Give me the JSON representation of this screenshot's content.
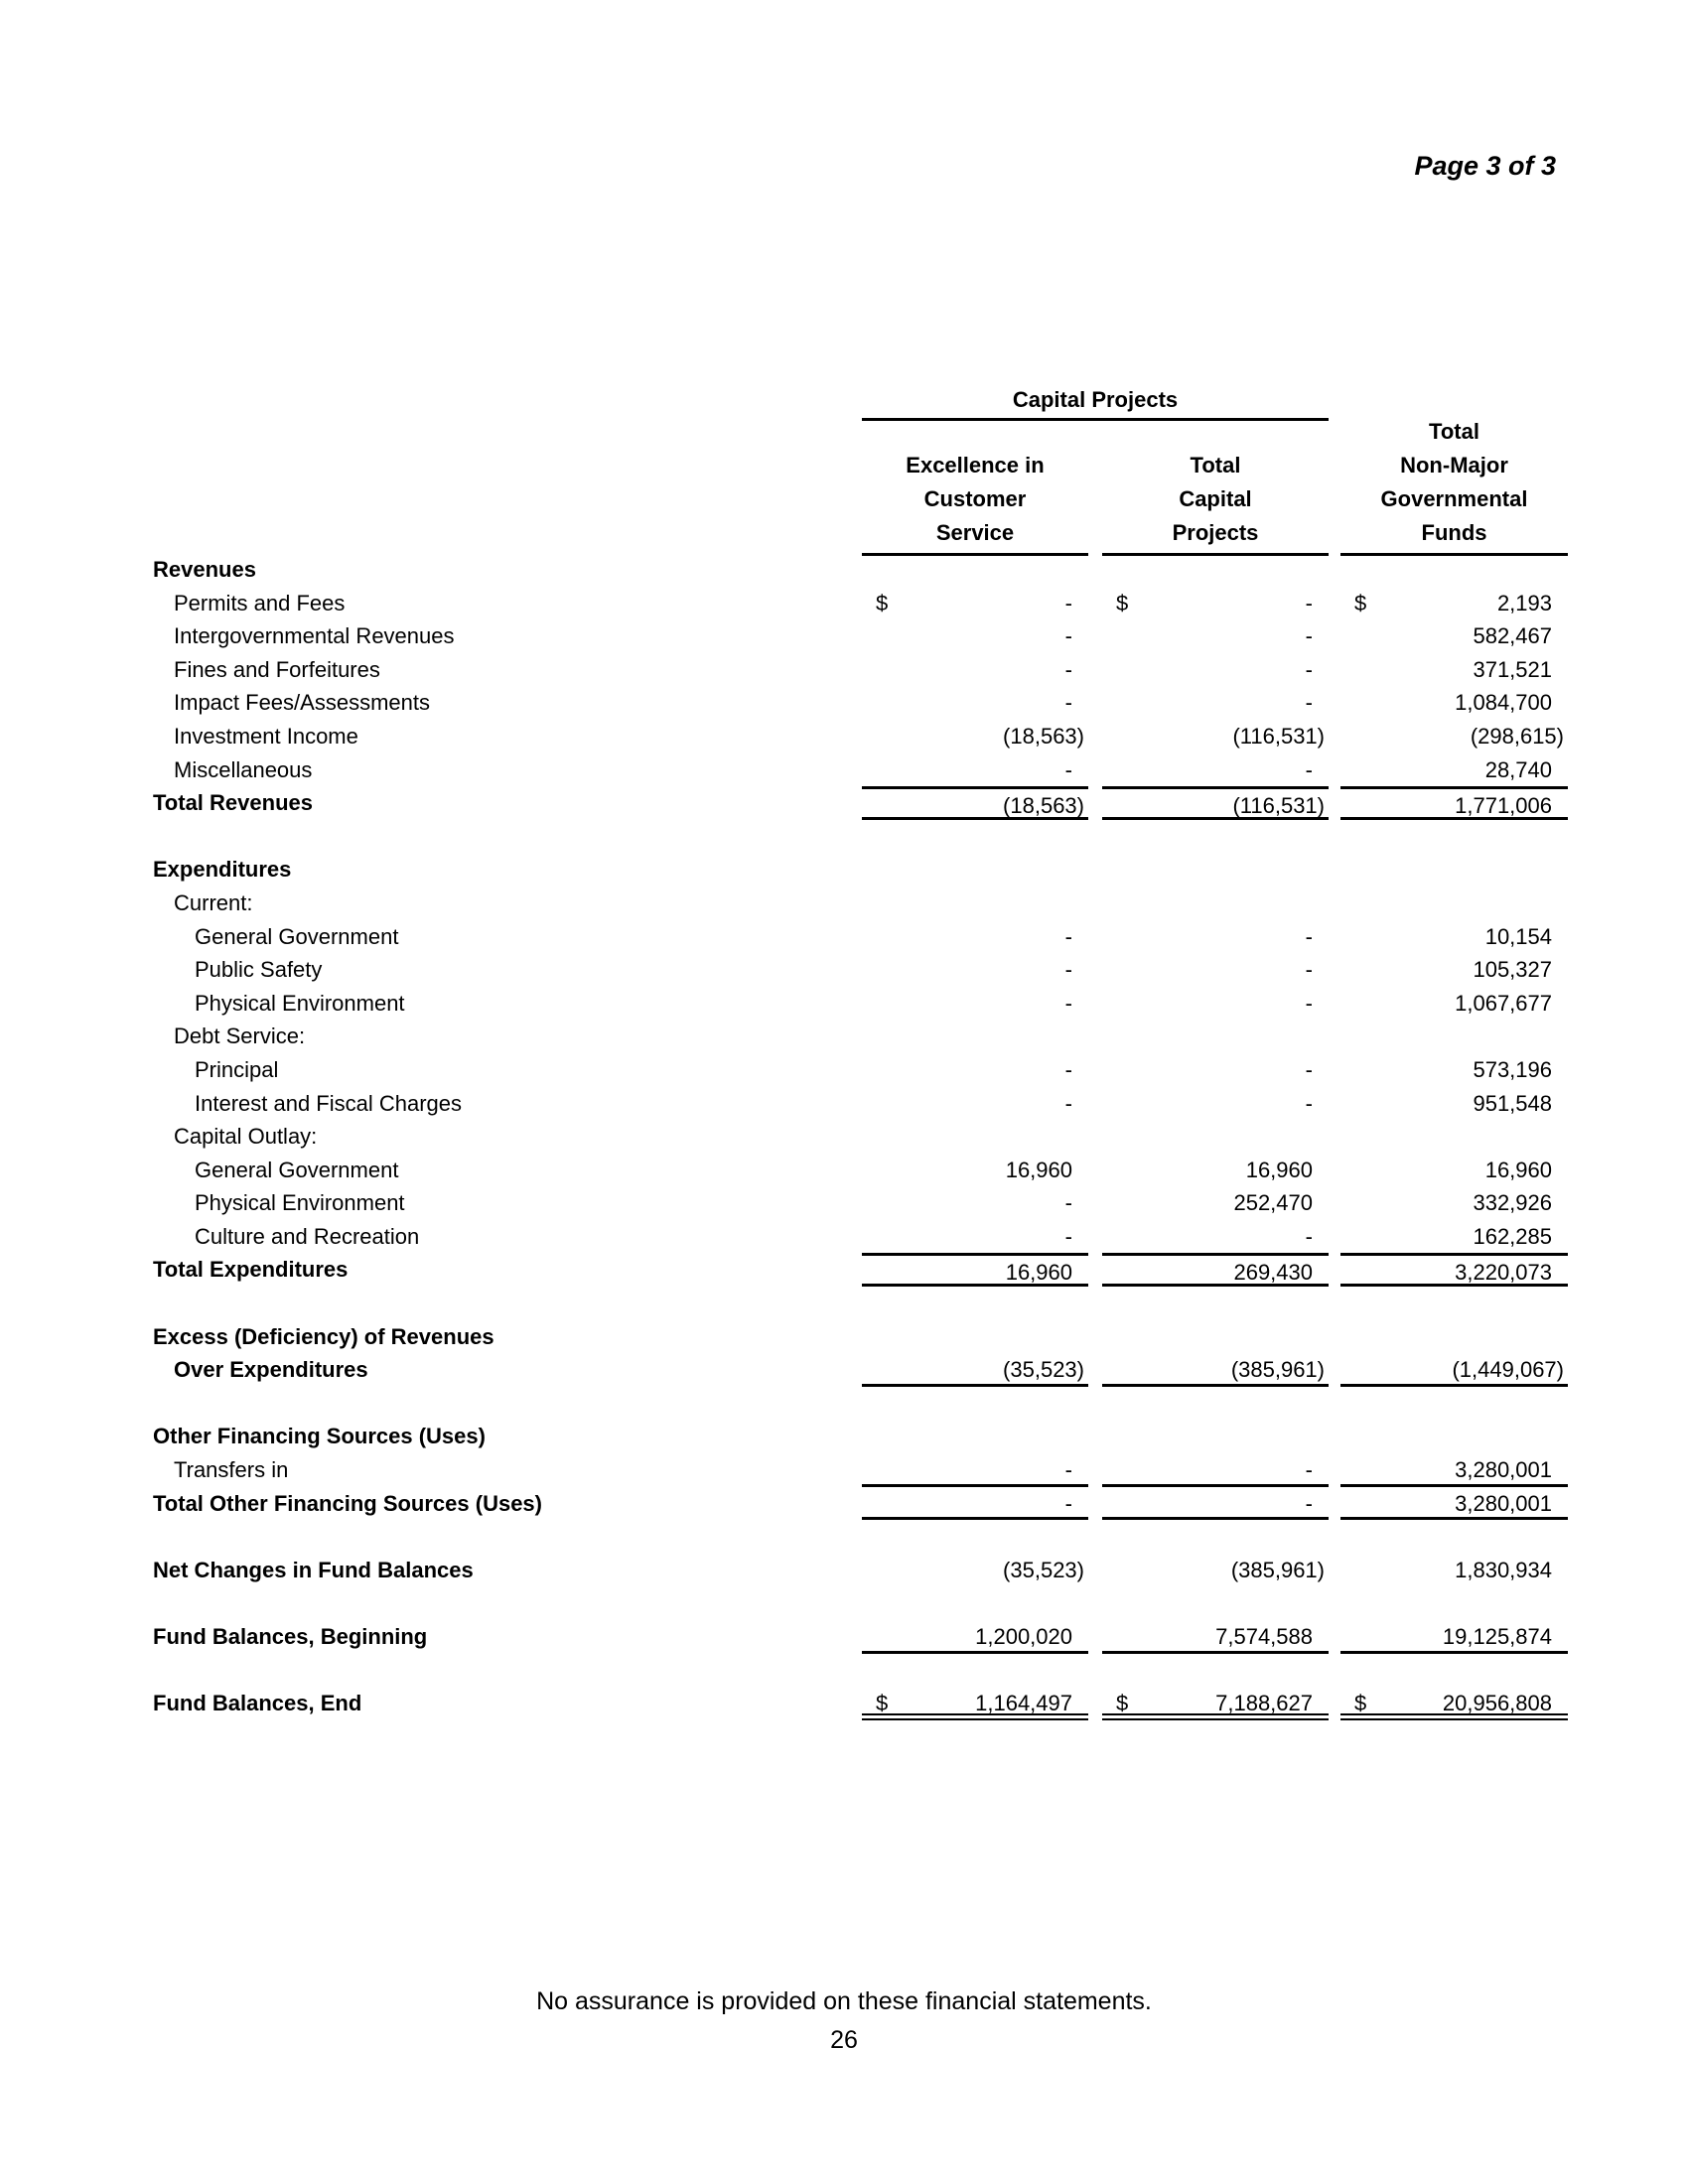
{
  "page_label": "Page 3 of 3",
  "group_header": "Capital Projects",
  "columns": [
    {
      "lines": [
        "Excellence in",
        "Customer",
        "Service"
      ]
    },
    {
      "lines": [
        "Total",
        "Capital",
        "Projects"
      ]
    },
    {
      "lines": [
        "Total",
        "Non-Major",
        "Governmental",
        "Funds"
      ]
    }
  ],
  "rows": [
    {
      "label": "Revenues",
      "style": "b"
    },
    {
      "label": "Permits and Fees",
      "style": "i1",
      "dollar": true,
      "values": [
        "-",
        "-",
        "2,193"
      ]
    },
    {
      "label": "Intergovernmental Revenues",
      "style": "i1",
      "values": [
        "-",
        "-",
        "582,467"
      ]
    },
    {
      "label": "Fines and Forfeitures",
      "style": "i1",
      "values": [
        "-",
        "-",
        "371,521"
      ]
    },
    {
      "label": "Impact Fees/Assessments",
      "style": "i1",
      "values": [
        "-",
        "-",
        "1,084,700"
      ]
    },
    {
      "label": "Investment Income",
      "style": "i1",
      "values": [
        "(18,563)",
        "(116,531)",
        "(298,615)"
      ]
    },
    {
      "label": "Miscellaneous",
      "style": "i1",
      "values": [
        "-",
        "-",
        "28,740"
      ]
    },
    {
      "label": "Total Revenues",
      "style": "b",
      "border": "bt bb",
      "values": [
        "(18,563)",
        "(116,531)",
        "1,771,006"
      ]
    },
    {
      "label": ""
    },
    {
      "label": "Expenditures",
      "style": "b"
    },
    {
      "label": "Current:",
      "style": "i1"
    },
    {
      "label": "General Government",
      "style": "i2",
      "values": [
        "-",
        "-",
        "10,154"
      ]
    },
    {
      "label": "Public Safety",
      "style": "i2",
      "values": [
        "-",
        "-",
        "105,327"
      ]
    },
    {
      "label": "Physical Environment",
      "style": "i2",
      "values": [
        "-",
        "-",
        "1,067,677"
      ]
    },
    {
      "label": "Debt Service:",
      "style": "i1"
    },
    {
      "label": "Principal",
      "style": "i2",
      "values": [
        "-",
        "-",
        "573,196"
      ]
    },
    {
      "label": "Interest and Fiscal Charges",
      "style": "i2",
      "values": [
        "-",
        "-",
        "951,548"
      ]
    },
    {
      "label": "Capital Outlay:",
      "style": "i1"
    },
    {
      "label": "General Government",
      "style": "i2",
      "values": [
        "16,960",
        "16,960",
        "16,960"
      ]
    },
    {
      "label": "Physical Environment",
      "style": "i2",
      "values": [
        "-",
        "252,470",
        "332,926"
      ]
    },
    {
      "label": "Culture and Recreation",
      "style": "i2",
      "values": [
        "-",
        "-",
        "162,285"
      ]
    },
    {
      "label": "Total Expenditures",
      "style": "b",
      "border": "bt bb",
      "values": [
        "16,960",
        "269,430",
        "3,220,073"
      ]
    },
    {
      "label": ""
    },
    {
      "label": "Excess (Deficiency) of Revenues",
      "style": "b"
    },
    {
      "label": "Over Expenditures",
      "style": "b i1",
      "border": "bb",
      "values": [
        "(35,523)",
        "(385,961)",
        "(1,449,067)"
      ]
    },
    {
      "label": ""
    },
    {
      "label": "Other Financing Sources (Uses)",
      "style": "b"
    },
    {
      "label": "Transfers in",
      "style": "i1",
      "border": "bb",
      "values": [
        "-",
        "-",
        "3,280,001"
      ]
    },
    {
      "label": "Total Other Financing Sources (Uses)",
      "style": "b",
      "border": "bb",
      "values": [
        "-",
        "-",
        "3,280,001"
      ]
    },
    {
      "label": ""
    },
    {
      "label": "Net Changes in Fund Balances",
      "style": "b",
      "values": [
        "(35,523)",
        "(385,961)",
        "1,830,934"
      ]
    },
    {
      "label": ""
    },
    {
      "label": "Fund Balances, Beginning",
      "style": "b",
      "border": "bb",
      "values": [
        "1,200,020",
        "7,574,588",
        "19,125,874"
      ]
    },
    {
      "label": ""
    },
    {
      "label": "Fund Balances, End",
      "style": "b",
      "border": "bd",
      "dollar": true,
      "values": [
        "1,164,497",
        "7,188,627",
        "20,956,808"
      ]
    }
  ],
  "dollar_sign": "$",
  "footer": "No assurance is provided on these financial statements.",
  "page_number": "26"
}
